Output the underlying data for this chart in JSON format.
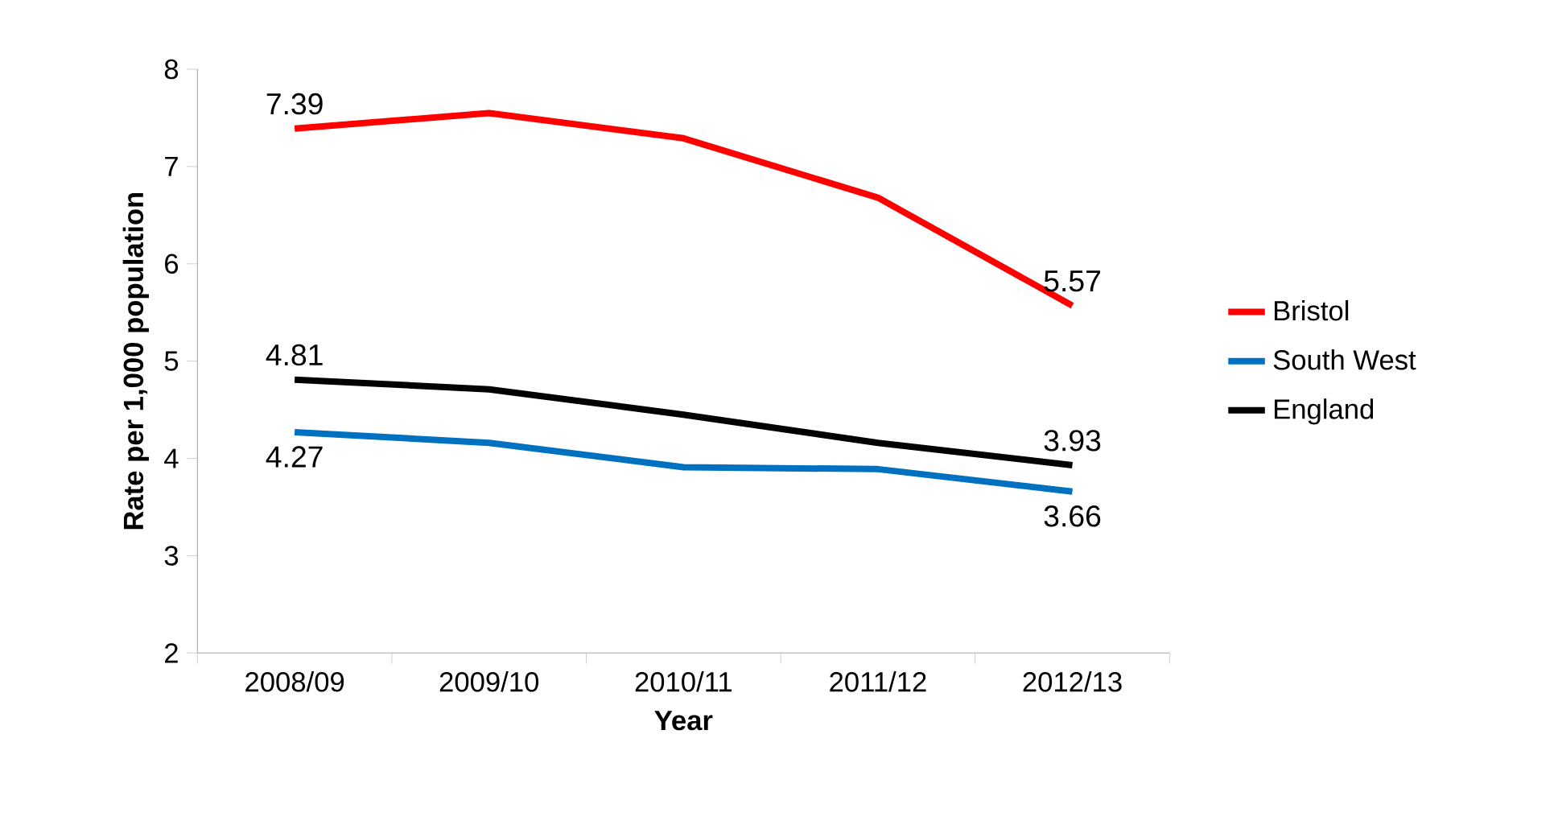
{
  "chart_data": {
    "type": "line",
    "xlabel": "Year",
    "ylabel": "Rate per 1,000 population",
    "categories": [
      "2008/09",
      "2009/10",
      "2010/11",
      "2011/12",
      "2012/13"
    ],
    "series": [
      {
        "name": "Bristol",
        "color": "#ff0000",
        "values": [
          7.39,
          7.55,
          7.29,
          6.68,
          5.57
        ],
        "value_labels": [
          "7.39",
          null,
          null,
          null,
          "5.57"
        ]
      },
      {
        "name": "South West",
        "color": "#0070c0",
        "values": [
          4.27,
          4.16,
          3.91,
          3.89,
          3.66
        ],
        "value_labels": [
          "4.27",
          null,
          null,
          null,
          "3.66"
        ]
      },
      {
        "name": "England",
        "color": "#000000",
        "values": [
          4.81,
          4.71,
          4.45,
          4.16,
          3.93
        ],
        "value_labels": [
          "4.81",
          null,
          null,
          null,
          "3.93"
        ]
      }
    ],
    "ylim": [
      2,
      8
    ],
    "yticks": [
      2,
      3,
      4,
      5,
      6,
      7,
      8
    ],
    "grid": false,
    "legend": "right",
    "marker": "none",
    "line_style": "solid"
  }
}
